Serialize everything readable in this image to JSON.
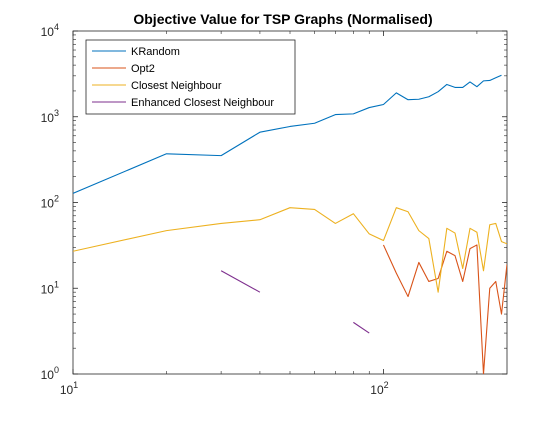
{
  "chart_data": {
    "type": "line",
    "title": "Objective Value for TSP Graphs (Normalised)",
    "xlabel": "",
    "ylabel": "",
    "x_scale": "log",
    "y_scale": "log",
    "xlim": [
      10,
      250
    ],
    "ylim": [
      1,
      10000
    ],
    "grid": false,
    "legend_position": "top-left",
    "x_ticks": [
      {
        "value": 10,
        "base": "10",
        "exp": "1"
      },
      {
        "value": 100,
        "base": "10",
        "exp": "2"
      }
    ],
    "y_ticks": [
      {
        "value": 1,
        "base": "10",
        "exp": "0"
      },
      {
        "value": 10,
        "base": "10",
        "exp": "1"
      },
      {
        "value": 100,
        "base": "10",
        "exp": "2"
      },
      {
        "value": 1000,
        "base": "10",
        "exp": "3"
      },
      {
        "value": 10000,
        "base": "10",
        "exp": "4"
      }
    ],
    "series": [
      {
        "name": "KRandom",
        "color": "#0072BD",
        "points": [
          [
            10,
            128
          ],
          [
            20,
            370
          ],
          [
            30,
            352
          ],
          [
            40,
            660
          ],
          [
            50,
            770
          ],
          [
            60,
            840
          ],
          [
            70,
            1060
          ],
          [
            80,
            1080
          ],
          [
            90,
            1280
          ],
          [
            100,
            1390
          ],
          [
            110,
            1900
          ],
          [
            120,
            1580
          ],
          [
            130,
            1600
          ],
          [
            140,
            1710
          ],
          [
            150,
            1960
          ],
          [
            160,
            2380
          ],
          [
            170,
            2200
          ],
          [
            180,
            2200
          ],
          [
            190,
            2550
          ],
          [
            200,
            2240
          ],
          [
            210,
            2620
          ],
          [
            220,
            2650
          ],
          [
            230,
            2850
          ],
          [
            240,
            3050
          ]
        ]
      },
      {
        "name": "Opt2",
        "color": "#D95319",
        "points": [
          [
            100,
            32
          ],
          [
            110,
            15
          ],
          [
            120,
            8
          ],
          [
            130,
            20
          ],
          [
            140,
            12
          ],
          [
            150,
            13
          ],
          [
            160,
            27
          ],
          [
            170,
            24
          ],
          [
            180,
            12
          ],
          [
            190,
            29
          ],
          [
            200,
            32
          ],
          [
            210,
            1
          ],
          [
            220,
            10
          ],
          [
            230,
            12
          ],
          [
            240,
            5
          ],
          [
            250,
            19
          ]
        ]
      },
      {
        "name": "Closest Neighbour",
        "color": "#EDB120",
        "points": [
          [
            10,
            27
          ],
          [
            20,
            47
          ],
          [
            30,
            57
          ],
          [
            40,
            63
          ],
          [
            50,
            87
          ],
          [
            60,
            83
          ],
          [
            70,
            57
          ],
          [
            80,
            74
          ],
          [
            90,
            43
          ],
          [
            100,
            36
          ],
          [
            110,
            87
          ],
          [
            120,
            78
          ],
          [
            130,
            47
          ],
          [
            140,
            38
          ],
          [
            150,
            9
          ],
          [
            160,
            50
          ],
          [
            170,
            44
          ],
          [
            180,
            17
          ],
          [
            190,
            50
          ],
          [
            200,
            45
          ],
          [
            210,
            16
          ],
          [
            220,
            55
          ],
          [
            230,
            57
          ],
          [
            240,
            35
          ],
          [
            250,
            33
          ]
        ]
      },
      {
        "name": "Enhanced Closest Neighbour",
        "color": "#7E2F8E",
        "segments": [
          [
            [
              30,
              16
            ],
            [
              40,
              9
            ]
          ],
          [
            [
              80,
              4
            ],
            [
              90,
              3
            ]
          ]
        ]
      }
    ]
  }
}
